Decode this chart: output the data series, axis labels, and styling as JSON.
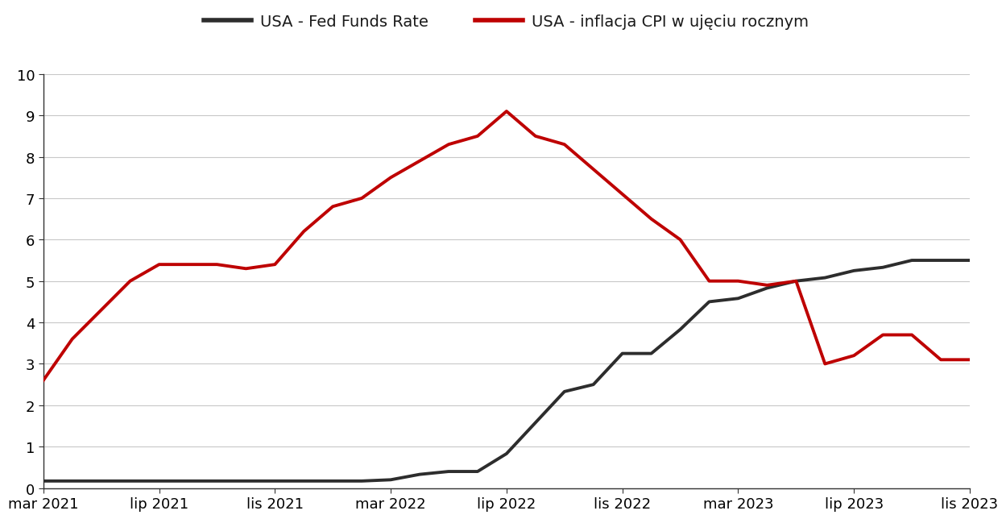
{
  "legend_fed": "USA - Fed Funds Rate",
  "legend_cpi": "USA - inflacja CPI w ujęciu rocznym",
  "x_labels": [
    "mar 2021",
    "lip 2021",
    "lis 2021",
    "mar 2022",
    "lip 2022",
    "lis 2022",
    "mar 2023",
    "lip 2023",
    "lis 2023"
  ],
  "x_positions": [
    0,
    4,
    8,
    12,
    16,
    20,
    24,
    28,
    32
  ],
  "fed_x": [
    0,
    1,
    2,
    3,
    4,
    5,
    6,
    7,
    8,
    9,
    10,
    11,
    12,
    13,
    14,
    15,
    16,
    17,
    18,
    19,
    20,
    21,
    22,
    23,
    24,
    25,
    26,
    27,
    28,
    29,
    30,
    31,
    32
  ],
  "fed_y": [
    0.17,
    0.17,
    0.17,
    0.17,
    0.17,
    0.17,
    0.17,
    0.17,
    0.17,
    0.17,
    0.17,
    0.17,
    0.2,
    0.33,
    0.4,
    0.4,
    0.83,
    1.58,
    2.33,
    2.5,
    3.25,
    3.25,
    3.83,
    4.5,
    4.58,
    4.83,
    5.0,
    5.08,
    5.25,
    5.33,
    5.5,
    5.5,
    5.5
  ],
  "cpi_x": [
    0,
    1,
    2,
    3,
    4,
    5,
    6,
    7,
    8,
    9,
    10,
    11,
    12,
    13,
    14,
    15,
    16,
    17,
    18,
    19,
    20,
    21,
    22,
    23,
    24,
    25,
    26,
    27,
    28,
    29,
    30,
    31,
    32
  ],
  "cpi_y": [
    2.6,
    3.6,
    4.3,
    5.0,
    5.4,
    5.4,
    5.4,
    5.3,
    5.4,
    6.2,
    6.8,
    7.0,
    7.5,
    7.9,
    8.3,
    8.5,
    9.1,
    8.5,
    8.3,
    7.7,
    7.1,
    6.5,
    6.0,
    5.0,
    5.0,
    4.9,
    5.0,
    3.0,
    3.2,
    3.7,
    3.7,
    3.1,
    3.1
  ],
  "fed_color": "#2d2d2d",
  "cpi_color": "#be0000",
  "line_width": 2.8,
  "ylim": [
    0,
    10
  ],
  "yticks": [
    0,
    1,
    2,
    3,
    4,
    5,
    6,
    7,
    8,
    9,
    10
  ],
  "grid_color": "#c8c8c8",
  "bg_color": "#ffffff",
  "legend_fontsize": 14,
  "tick_fontsize": 13
}
